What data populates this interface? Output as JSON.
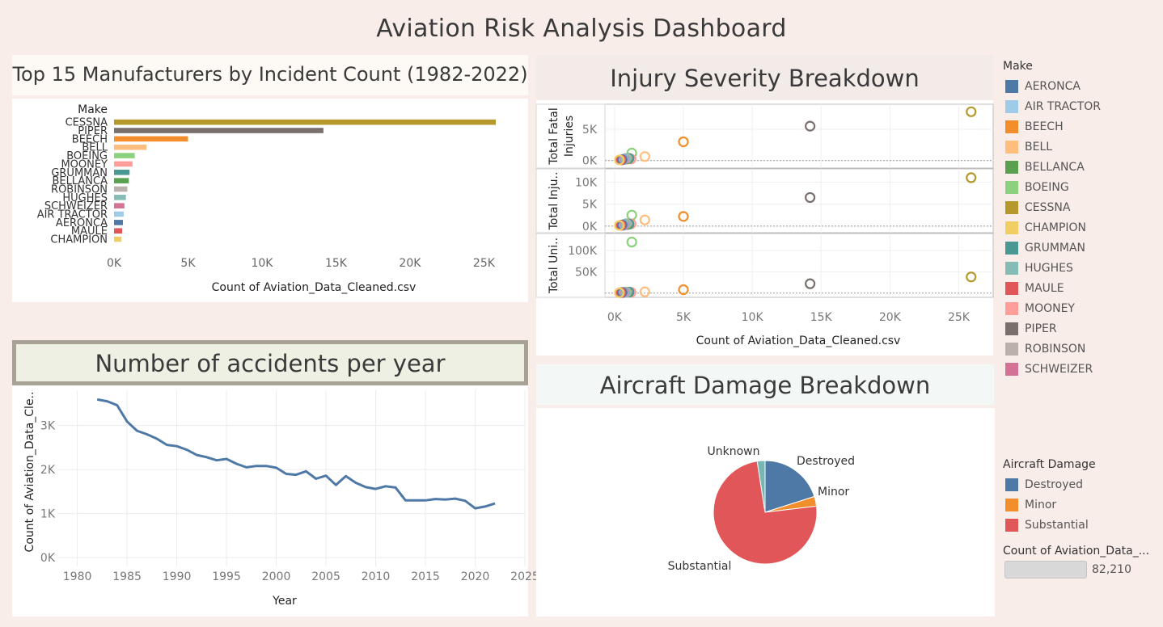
{
  "dashboard": {
    "title": "Aviation Risk Analysis Dashboard"
  },
  "palette": {
    "AERONCA": "#4e79a7",
    "AIR TRACTOR": "#a0cbe8",
    "BEECH": "#f28e2b",
    "BELL": "#ffbe7d",
    "BELLANCA": "#59a14f",
    "BOEING": "#8cd17d",
    "CESSNA": "#b6992d",
    "CHAMPION": "#f1ce63",
    "GRUMMAN": "#499894",
    "HUGHES": "#86bcb6",
    "MAULE": "#e15759",
    "MOONEY": "#ff9d9a",
    "PIPER": "#79706e",
    "ROBINSON": "#bab0ac",
    "SCHWEIZER": "#d37295"
  },
  "bar_panel": {
    "title": "Top 15 Manufacturers by Incident Count (1982-2022)",
    "chart_data": {
      "type": "bar",
      "orientation": "horizontal",
      "ylabel": "Make",
      "xlabel": "Count of Aviation_Data_Cleaned.csv",
      "categories": [
        "CESSNA",
        "PIPER",
        "BEECH",
        "BELL",
        "BOEING",
        "MOONEY",
        "GRUMMAN",
        "BELLANCA",
        "ROBINSON",
        "HUGHES",
        "SCHWEIZER",
        "AIR TRACTOR",
        "AERONCA",
        "MAULE",
        "CHAMPION"
      ],
      "values": [
        25800,
        14150,
        5000,
        2200,
        1400,
        1250,
        1050,
        1000,
        900,
        800,
        700,
        650,
        600,
        550,
        500
      ],
      "xlim": [
        0,
        27000
      ],
      "xticks": [
        0,
        5000,
        10000,
        15000,
        20000,
        25000
      ],
      "xtick_labels": [
        "0K",
        "5K",
        "10K",
        "15K",
        "20K",
        "25K"
      ]
    }
  },
  "line_panel": {
    "title": "Number of accidents per year",
    "chart_data": {
      "type": "line",
      "xlabel": "Year",
      "ylabel": "Count of Aviation_Data_Cle..",
      "x": [
        1982,
        1983,
        1984,
        1985,
        1986,
        1987,
        1988,
        1989,
        1990,
        1991,
        1992,
        1993,
        1994,
        1995,
        1996,
        1997,
        1998,
        1999,
        2000,
        2001,
        2002,
        2003,
        2004,
        2005,
        2006,
        2007,
        2008,
        2009,
        2010,
        2011,
        2012,
        2013,
        2014,
        2015,
        2016,
        2017,
        2018,
        2019,
        2020,
        2021,
        2022
      ],
      "values": [
        3590,
        3550,
        3460,
        3090,
        2880,
        2800,
        2700,
        2560,
        2530,
        2450,
        2330,
        2280,
        2210,
        2240,
        2130,
        2050,
        2080,
        2080,
        2040,
        1900,
        1880,
        1960,
        1790,
        1860,
        1650,
        1850,
        1700,
        1600,
        1560,
        1620,
        1590,
        1300,
        1300,
        1300,
        1330,
        1320,
        1340,
        1290,
        1120,
        1160,
        1230
      ],
      "xlim": [
        1978,
        2025
      ],
      "ylim": [
        -200,
        3800
      ],
      "xticks": [
        1980,
        1985,
        1990,
        1995,
        2000,
        2005,
        2010,
        2015,
        2020,
        2025
      ],
      "yticks": [
        0,
        1000,
        2000,
        3000
      ],
      "ytick_labels": [
        "0K",
        "1K",
        "2K",
        "3K"
      ]
    }
  },
  "scatter_panel": {
    "title": "Injury Severity Breakdown",
    "chart_data": {
      "type": "scatter",
      "xlabel": "Count of Aviation_Data_Cleaned.csv",
      "xlim": [
        -700,
        27500
      ],
      "xticks": [
        0,
        5000,
        10000,
        15000,
        20000,
        25000
      ],
      "xtick_labels": [
        "0K",
        "5K",
        "10K",
        "15K",
        "20K",
        "25K"
      ],
      "panels": [
        {
          "ylabel": "Total Fatal Injuries",
          "ylim": [
            -1200,
            9000
          ],
          "yticks": [
            0,
            5000
          ],
          "ytick_labels": [
            "0K",
            "5K"
          ]
        },
        {
          "ylabel": "Total Inju..",
          "ylim": [
            -1500,
            13000
          ],
          "yticks": [
            0,
            5000,
            10000
          ],
          "ytick_labels": [
            "0K",
            "5K",
            "10K"
          ]
        },
        {
          "ylabel": "Total Uni..",
          "ylim": [
            -10000,
            140000
          ],
          "yticks": [
            50000,
            100000
          ],
          "ytick_labels": [
            "50K",
            "100K"
          ]
        }
      ],
      "points": [
        {
          "make": "CESSNA",
          "x": 25900,
          "y": [
            7800,
            11000,
            38000
          ]
        },
        {
          "make": "PIPER",
          "x": 14200,
          "y": [
            5500,
            6500,
            22000
          ]
        },
        {
          "make": "BEECH",
          "x": 5000,
          "y": [
            3000,
            2200,
            8000
          ]
        },
        {
          "make": "BELL",
          "x": 2200,
          "y": [
            650,
            1400,
            3000
          ]
        },
        {
          "make": "BOEING",
          "x": 1250,
          "y": [
            1200,
            2500,
            120000
          ]
        },
        {
          "make": "MOONEY",
          "x": 1200,
          "y": [
            250,
            500,
            2000
          ]
        },
        {
          "make": "GRUMMAN",
          "x": 1050,
          "y": [
            350,
            450,
            2500
          ]
        },
        {
          "make": "BELLANCA",
          "x": 900,
          "y": [
            250,
            350,
            2000
          ]
        },
        {
          "make": "ROBINSON",
          "x": 850,
          "y": [
            350,
            550,
            2000
          ]
        },
        {
          "make": "HUGHES",
          "x": 750,
          "y": [
            300,
            450,
            1800
          ]
        },
        {
          "make": "SCHWEIZER",
          "x": 650,
          "y": [
            150,
            200,
            1200
          ]
        },
        {
          "make": "AIR TRACTOR",
          "x": 600,
          "y": [
            150,
            250,
            1000
          ]
        },
        {
          "make": "AERONCA",
          "x": 550,
          "y": [
            150,
            250,
            1500
          ]
        },
        {
          "make": "MAULE",
          "x": 450,
          "y": [
            100,
            200,
            1000
          ]
        },
        {
          "make": "CHAMPION",
          "x": 350,
          "y": [
            100,
            150,
            800
          ]
        }
      ]
    }
  },
  "pie_panel": {
    "title": "Aircraft Damage Breakdown",
    "chart_data": {
      "type": "pie",
      "categories": [
        "Destroyed",
        "Minor",
        "Substantial",
        "Unknown"
      ],
      "values": [
        16500,
        2500,
        61200,
        2010
      ],
      "colors": [
        "#4e79a7",
        "#f28e2b",
        "#e15759",
        "#76b7b2"
      ]
    }
  },
  "make_legend": {
    "title": "Make",
    "items": [
      "AERONCA",
      "AIR TRACTOR",
      "BEECH",
      "BELL",
      "BELLANCA",
      "BOEING",
      "CESSNA",
      "CHAMPION",
      "GRUMMAN",
      "HUGHES",
      "MAULE",
      "MOONEY",
      "PIPER",
      "ROBINSON",
      "SCHWEIZER"
    ]
  },
  "damage_legend": {
    "title": "Aircraft Damage",
    "items": [
      {
        "label": "Destroyed",
        "color": "#4e79a7"
      },
      {
        "label": "Minor",
        "color": "#f28e2b"
      },
      {
        "label": "Substantial",
        "color": "#e15759"
      }
    ]
  },
  "size_legend": {
    "title": "Count of Aviation_Data_...",
    "value": "82,210"
  }
}
